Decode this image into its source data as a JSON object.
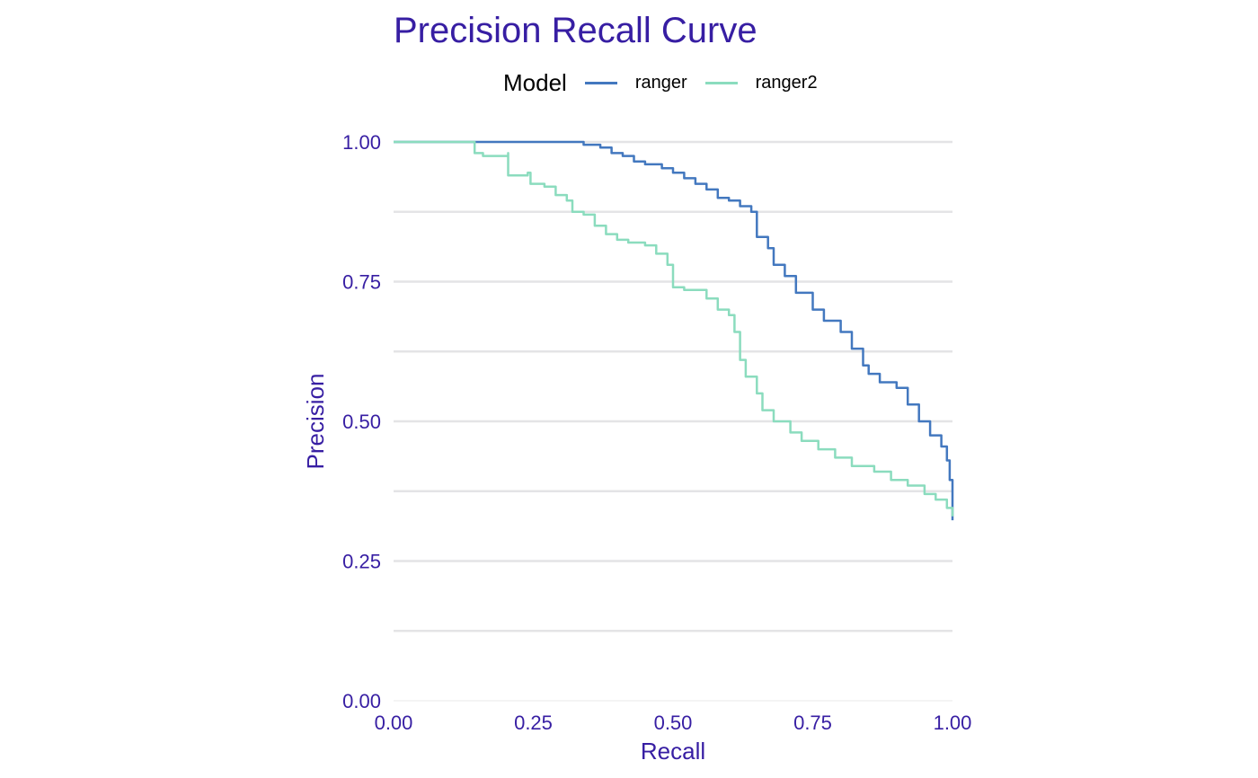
{
  "chart_data": {
    "type": "line",
    "title": "Precision Recall Curve",
    "xlabel": "Recall",
    "ylabel": "Precision",
    "xlim": [
      0,
      1
    ],
    "ylim": [
      0,
      1
    ],
    "x_ticks": [
      "0.00",
      "0.25",
      "0.50",
      "0.75",
      "1.00"
    ],
    "y_ticks": [
      "0.00",
      "0.25",
      "0.50",
      "0.75",
      "1.00"
    ],
    "grid": true,
    "legend": {
      "title": "Model",
      "position": "top"
    },
    "series": [
      {
        "name": "ranger",
        "color": "#4378bf",
        "points": [
          [
            0.0,
            1.0
          ],
          [
            0.32,
            1.0
          ],
          [
            0.34,
            0.995
          ],
          [
            0.37,
            0.99
          ],
          [
            0.39,
            0.98
          ],
          [
            0.41,
            0.975
          ],
          [
            0.43,
            0.965
          ],
          [
            0.45,
            0.96
          ],
          [
            0.48,
            0.953
          ],
          [
            0.5,
            0.945
          ],
          [
            0.52,
            0.935
          ],
          [
            0.54,
            0.925
          ],
          [
            0.56,
            0.915
          ],
          [
            0.58,
            0.9
          ],
          [
            0.6,
            0.895
          ],
          [
            0.62,
            0.885
          ],
          [
            0.64,
            0.875
          ],
          [
            0.65,
            0.83
          ],
          [
            0.67,
            0.81
          ],
          [
            0.68,
            0.78
          ],
          [
            0.7,
            0.76
          ],
          [
            0.72,
            0.73
          ],
          [
            0.75,
            0.7
          ],
          [
            0.77,
            0.68
          ],
          [
            0.8,
            0.66
          ],
          [
            0.82,
            0.63
          ],
          [
            0.84,
            0.6
          ],
          [
            0.85,
            0.585
          ],
          [
            0.87,
            0.57
          ],
          [
            0.9,
            0.56
          ],
          [
            0.92,
            0.53
          ],
          [
            0.94,
            0.5
          ],
          [
            0.96,
            0.475
          ],
          [
            0.98,
            0.455
          ],
          [
            0.99,
            0.43
          ],
          [
            0.995,
            0.395
          ],
          [
            1.0,
            0.36
          ],
          [
            1.0,
            0.323
          ]
        ]
      },
      {
        "name": "ranger2",
        "color": "#8bdcbe",
        "points": [
          [
            0.0,
            1.0
          ],
          [
            0.145,
            1.0
          ],
          [
            0.145,
            0.98
          ],
          [
            0.16,
            0.975
          ],
          [
            0.205,
            0.98
          ],
          [
            0.205,
            0.94
          ],
          [
            0.24,
            0.945
          ],
          [
            0.245,
            0.925
          ],
          [
            0.27,
            0.92
          ],
          [
            0.29,
            0.905
          ],
          [
            0.31,
            0.895
          ],
          [
            0.32,
            0.875
          ],
          [
            0.34,
            0.87
          ],
          [
            0.36,
            0.85
          ],
          [
            0.38,
            0.835
          ],
          [
            0.4,
            0.825
          ],
          [
            0.42,
            0.82
          ],
          [
            0.45,
            0.815
          ],
          [
            0.47,
            0.8
          ],
          [
            0.49,
            0.78
          ],
          [
            0.5,
            0.74
          ],
          [
            0.52,
            0.735
          ],
          [
            0.54,
            0.735
          ],
          [
            0.56,
            0.72
          ],
          [
            0.58,
            0.7
          ],
          [
            0.6,
            0.69
          ],
          [
            0.61,
            0.66
          ],
          [
            0.62,
            0.61
          ],
          [
            0.63,
            0.58
          ],
          [
            0.65,
            0.55
          ],
          [
            0.66,
            0.52
          ],
          [
            0.68,
            0.5
          ],
          [
            0.71,
            0.48
          ],
          [
            0.73,
            0.465
          ],
          [
            0.76,
            0.45
          ],
          [
            0.79,
            0.435
          ],
          [
            0.82,
            0.42
          ],
          [
            0.86,
            0.41
          ],
          [
            0.89,
            0.395
          ],
          [
            0.92,
            0.385
          ],
          [
            0.95,
            0.37
          ],
          [
            0.97,
            0.36
          ],
          [
            0.99,
            0.345
          ],
          [
            1.0,
            0.33
          ]
        ]
      }
    ]
  }
}
